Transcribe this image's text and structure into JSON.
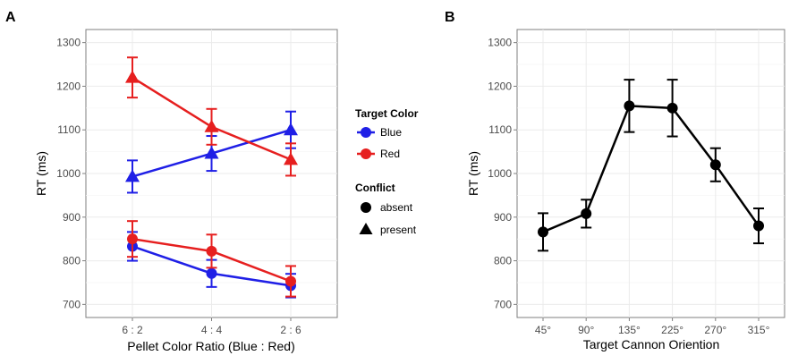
{
  "chart_data": [
    {
      "panel": "A",
      "type": "line",
      "categories": [
        "6 : 2",
        "4 : 4",
        "2 : 6"
      ],
      "xlabel": "Pellet Color Ratio (Blue : Red)",
      "ylabel": "RT (ms)",
      "ylim": [
        670,
        1330
      ],
      "yticks": [
        700,
        800,
        900,
        1000,
        1100,
        1200,
        1300
      ],
      "grid": true,
      "series": [
        {
          "name": "Blue",
          "color": "Blue",
          "conflict": "present",
          "color_hex": "#1f1fe6",
          "values": [
            993,
            1046,
            1100
          ],
          "err": [
            37,
            40,
            42
          ]
        },
        {
          "name": "Red",
          "color": "Red",
          "conflict": "present",
          "color_hex": "#e61f1f",
          "values": [
            1220,
            1107,
            1032
          ],
          "err": [
            46,
            41,
            37
          ]
        },
        {
          "name": "Blue",
          "color": "Blue",
          "conflict": "absent",
          "color_hex": "#1f1fe6",
          "values": [
            833,
            771,
            743
          ],
          "err": [
            33,
            31,
            27
          ]
        },
        {
          "name": "Red",
          "color": "Red",
          "conflict": "absent",
          "color_hex": "#e61f1f",
          "values": [
            850,
            822,
            753
          ],
          "err": [
            41,
            38,
            35
          ]
        }
      ],
      "legend": {
        "position": "right",
        "color_title": "Target Color",
        "color_items": [
          {
            "label": "Blue",
            "color_hex": "#1f1fe6"
          },
          {
            "label": "Red",
            "color_hex": "#e61f1f"
          }
        ],
        "shape_title": "Conflict",
        "shape_items": [
          {
            "label": "absent",
            "shape": "circle"
          },
          {
            "label": "present",
            "shape": "triangle"
          }
        ]
      }
    },
    {
      "panel": "B",
      "type": "line",
      "categories": [
        "45°",
        "90°",
        "135°",
        "225°",
        "270°",
        "315°"
      ],
      "xlabel": "Target Cannon Oriention",
      "ylabel": "RT (ms)",
      "ylim": [
        670,
        1330
      ],
      "yticks": [
        700,
        800,
        900,
        1000,
        1100,
        1200,
        1300
      ],
      "grid": true,
      "series": [
        {
          "name": "RT",
          "color_hex": "#000000",
          "values": [
            866,
            908,
            1155,
            1150,
            1020,
            880
          ],
          "err": [
            43,
            32,
            60,
            65,
            38,
            40
          ]
        }
      ]
    }
  ]
}
